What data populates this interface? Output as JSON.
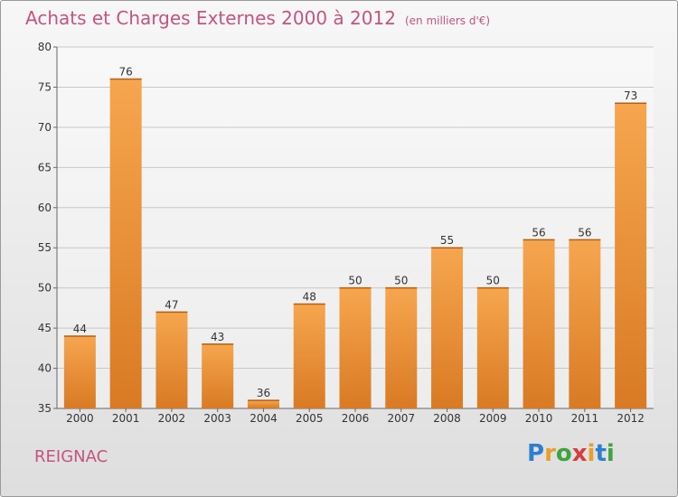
{
  "title": "Achats et Charges Externes 2000 à 2012",
  "subtitle": "(en milliers d'€)",
  "location": "REIGNAC",
  "logo": {
    "letters": [
      "P",
      "r",
      "o",
      "x",
      "i",
      "t",
      "i"
    ],
    "colors": [
      "#2f7fd1",
      "#e8a02c",
      "#3fa33f",
      "#d63e3e",
      "#e8a02c",
      "#2f7fd1",
      "#3fa33f"
    ]
  },
  "colors": {
    "bar_light": "#f6a64f",
    "bar_dark": "#d97a24",
    "title": "#c5547f",
    "grid": "#c8c8c8"
  },
  "chart_data": {
    "type": "bar",
    "title": "Achats et Charges Externes 2000 à 2012",
    "subtitle": "(en milliers d'€)",
    "categories": [
      "2000",
      "2001",
      "2002",
      "2003",
      "2004",
      "2005",
      "2006",
      "2007",
      "2008",
      "2009",
      "2010",
      "2011",
      "2012"
    ],
    "values": [
      44,
      76,
      47,
      43,
      36,
      48,
      50,
      50,
      55,
      50,
      56,
      56,
      73
    ],
    "data_labels": [
      "44",
      "76",
      "47",
      "43",
      "36",
      "48",
      "50",
      "50",
      "55",
      "50",
      "56",
      "56",
      "73"
    ],
    "ylim": [
      35,
      80
    ],
    "yticks": [
      35,
      40,
      45,
      50,
      55,
      60,
      65,
      70,
      75,
      80
    ],
    "ytick_labels": [
      "35",
      "40",
      "45",
      "50",
      "55",
      "60",
      "65",
      "70",
      "75",
      "80"
    ],
    "grid": true,
    "xlabel": "",
    "ylabel": ""
  }
}
